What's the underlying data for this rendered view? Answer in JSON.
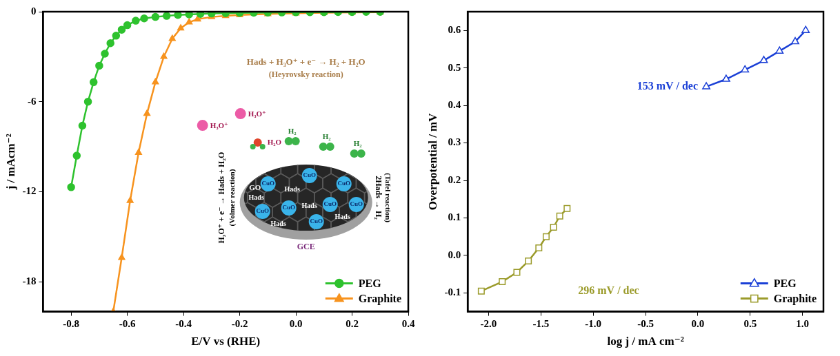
{
  "chart_data": [
    {
      "type": "line",
      "x_label": "E/V vs (RHE)",
      "y_label": "j / mAcm⁻²",
      "xlim": [
        -0.9,
        0.4
      ],
      "xticks": [
        -0.8,
        -0.6,
        -0.4,
        -0.2,
        {
          "value": 0,
          "label": "0.0"
        },
        0.2,
        0.4
      ],
      "ylim": [
        -20,
        0
      ],
      "yticks": [
        -18,
        -12,
        -6,
        0
      ],
      "grid": false,
      "legend": "lower right",
      "series": [
        {
          "name": "PEG",
          "color": "#2ec22e",
          "marker": "circle",
          "line_style": "solid",
          "x": [
            -0.8,
            -0.78,
            -0.76,
            -0.74,
            -0.72,
            -0.7,
            -0.68,
            -0.66,
            -0.64,
            -0.62,
            -0.6,
            -0.57,
            -0.54,
            -0.5,
            -0.46,
            -0.42,
            -0.38,
            -0.34,
            -0.3,
            -0.25,
            -0.2,
            -0.15,
            -0.1,
            -0.05,
            0.0,
            0.05,
            0.1,
            0.15,
            0.2,
            0.25,
            0.3
          ],
          "values": [
            -11.7,
            -9.6,
            -7.6,
            -6.0,
            -4.7,
            -3.6,
            -2.8,
            -2.1,
            -1.6,
            -1.2,
            -0.9,
            -0.6,
            -0.45,
            -0.35,
            -0.28,
            -0.22,
            -0.18,
            -0.15,
            -0.12,
            -0.1,
            -0.08,
            -0.07,
            -0.06,
            -0.05,
            -0.04,
            -0.03,
            -0.03,
            -0.02,
            -0.02,
            -0.01,
            -0.01
          ]
        },
        {
          "name": "Graphite",
          "color": "#f7931e",
          "marker": "triangle",
          "line_style": "solid",
          "x": [
            -0.65,
            -0.62,
            -0.59,
            -0.56,
            -0.53,
            -0.5,
            -0.47,
            -0.44,
            -0.41,
            -0.38,
            -0.35,
            -0.3,
            -0.25,
            -0.2,
            -0.1,
            0.0,
            0.1,
            0.2,
            0.3
          ],
          "values": [
            -20,
            -16.4,
            -12.6,
            -9.4,
            -6.8,
            -4.7,
            -3.0,
            -1.8,
            -1.1,
            -0.7,
            -0.5,
            -0.35,
            -0.28,
            -0.22,
            -0.15,
            -0.1,
            -0.07,
            -0.05,
            -0.03
          ]
        }
      ],
      "annotations": [
        "Hads + H₃O⁺ + e⁻ → H₂ + H₂O",
        "(Heyrovsky reaction)",
        "H₃O⁺ + e⁻ → Hads + H₂O",
        "(Volmer reaction)",
        "2Hads → H₂",
        "(Tafel reaction)",
        "H₃O⁺",
        "H₂O",
        "H₂",
        "CuO",
        "Hads",
        "GO",
        "GCE"
      ]
    },
    {
      "type": "line",
      "x_label": "log j / mA cm⁻²",
      "y_label": "Overpotential / mV",
      "xlim": [
        -2.2,
        1.2
      ],
      "xticks": [
        {
          "value": -2,
          "label": "-2.0"
        },
        -1.5,
        {
          "value": -1,
          "label": "-1.0"
        },
        -0.5,
        {
          "value": 0,
          "label": "0.0"
        },
        0.5,
        {
          "value": 1,
          "label": "1.0"
        }
      ],
      "ylim": [
        -0.15,
        0.65
      ],
      "yticks": [
        -0.1,
        {
          "value": 0,
          "label": "0.0"
        },
        0.1,
        0.2,
        0.3,
        0.4,
        0.5,
        0.6
      ],
      "grid": false,
      "legend": "lower right",
      "series": [
        {
          "name": "PEG",
          "color": "#1a3fd6",
          "marker": "open_triangle",
          "line_style": "solid",
          "x": [
            0.08,
            0.27,
            0.45,
            0.63,
            0.78,
            0.93,
            1.03
          ],
          "values": [
            0.45,
            0.47,
            0.495,
            0.52,
            0.545,
            0.57,
            0.6
          ]
        },
        {
          "name": "Graphite",
          "color": "#9b9b2b",
          "marker": "open_square",
          "line_style": "solid",
          "x": [
            -2.07,
            -1.87,
            -1.73,
            -1.62,
            -1.52,
            -1.45,
            -1.38,
            -1.32,
            -1.25
          ],
          "values": [
            -0.095,
            -0.07,
            -0.045,
            -0.015,
            0.02,
            0.05,
            0.075,
            0.105,
            0.125
          ]
        }
      ],
      "annotations": [
        "153 mV / dec",
        "296 mV / dec"
      ]
    }
  ]
}
